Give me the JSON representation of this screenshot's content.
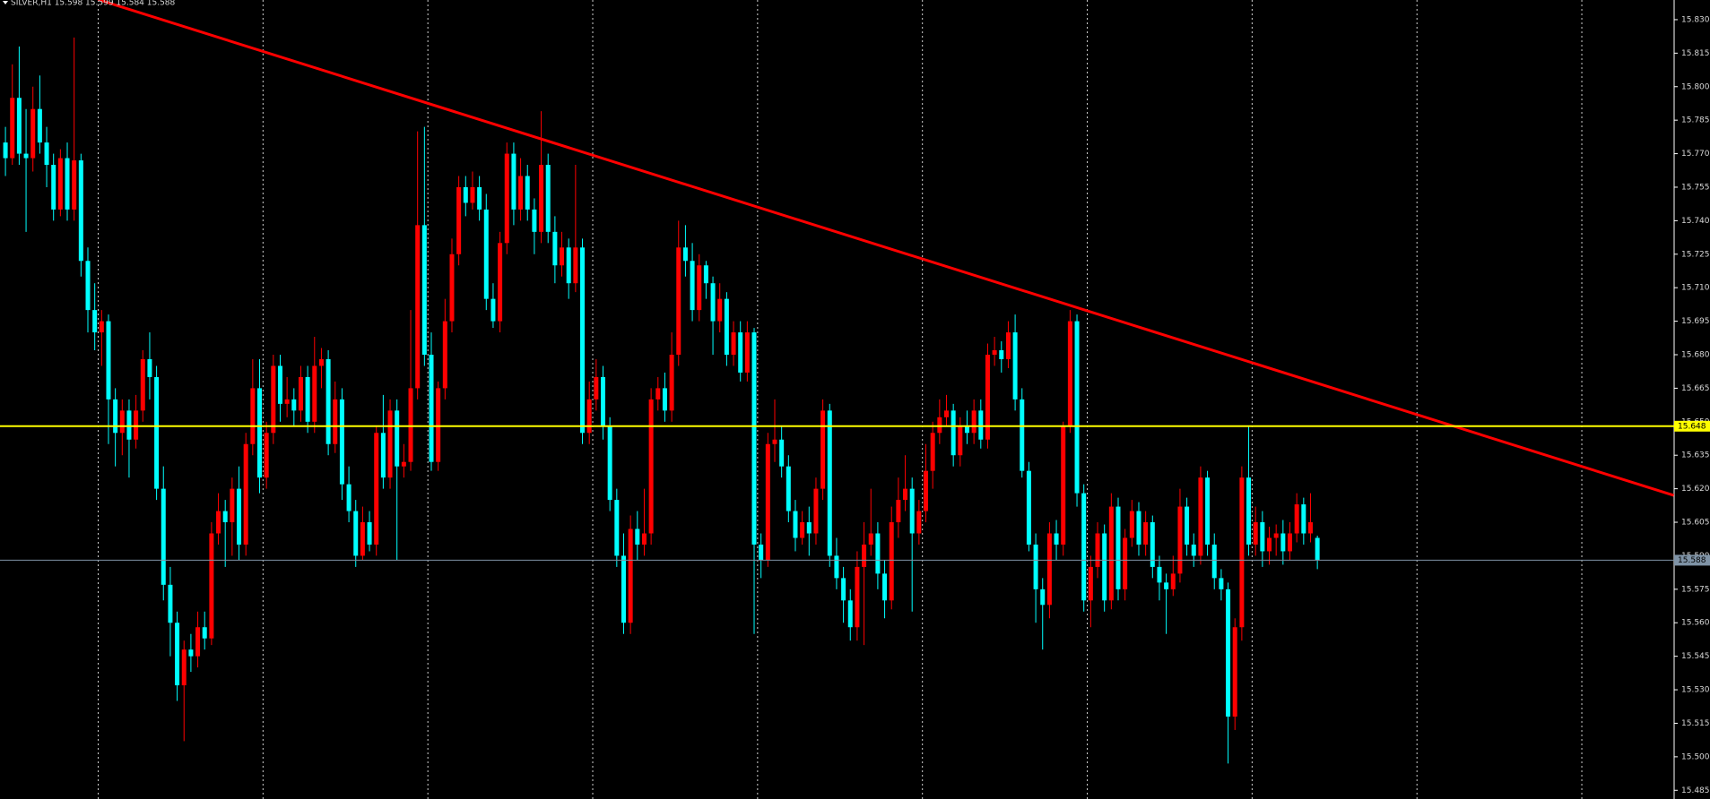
{
  "chart_data": {
    "type": "candlestick",
    "title": "SILVER,H1  15.598 15.599 15.584 15.588",
    "background": "#000000",
    "up_color": "#ff0000",
    "down_color": "#00ffff",
    "period_separators": true,
    "ylim": [
      15.4811,
      15.8388
    ],
    "yticks": [
      {
        "value": 15.83,
        "label": "15.830"
      },
      15.815,
      {
        "value": 15.8,
        "label": "15.800"
      },
      15.785,
      {
        "value": 15.77,
        "label": "15.770"
      },
      15.755,
      {
        "value": 15.74,
        "label": "15.740"
      },
      15.725,
      {
        "value": 15.71,
        "label": "15.710"
      },
      15.695,
      {
        "value": 15.68,
        "label": "15.680"
      },
      15.665,
      {
        "value": 15.65,
        "label": "15.650"
      },
      15.635,
      {
        "value": 15.62,
        "label": "15.620"
      },
      15.605,
      {
        "value": 15.59,
        "label": "15.590"
      },
      15.575,
      {
        "value": 15.56,
        "label": "15.560"
      },
      15.545,
      {
        "value": 15.53,
        "label": "15.530"
      },
      15.515,
      {
        "value": 15.5,
        "label": "15.500"
      },
      15.485
    ],
    "levels": [
      {
        "value": 15.648,
        "color": "#ffff00"
      },
      {
        "value": 15.588,
        "color": "#7f93a6"
      }
    ],
    "trendline": {
      "color": "#ff0000",
      "x": [
        13.5,
        242.9
      ],
      "y": [
        15.839,
        15.617
      ]
    },
    "ohlc": [
      [
        15.775,
        15.782,
        15.76,
        15.768
      ],
      [
        15.768,
        15.81,
        15.765,
        15.795
      ],
      [
        15.795,
        15.818,
        15.765,
        15.77
      ],
      [
        15.77,
        15.79,
        15.735,
        15.768
      ],
      [
        15.768,
        15.8,
        15.762,
        15.79
      ],
      [
        15.79,
        15.805,
        15.77,
        15.775
      ],
      [
        15.775,
        15.782,
        15.755,
        15.765
      ],
      [
        15.765,
        15.77,
        15.74,
        15.745
      ],
      [
        15.745,
        15.772,
        15.742,
        15.768
      ],
      [
        15.768,
        15.775,
        15.74,
        15.745
      ],
      [
        15.745,
        15.822,
        15.74,
        15.767
      ],
      [
        15.767,
        15.77,
        15.715,
        15.722
      ],
      [
        15.722,
        15.728,
        15.69,
        15.7
      ],
      [
        15.7,
        15.712,
        15.682,
        15.69
      ],
      [
        15.69,
        15.7,
        15.675,
        15.695
      ],
      [
        15.695,
        15.698,
        15.64,
        15.66
      ],
      [
        15.66,
        15.665,
        15.63,
        15.645
      ],
      [
        15.645,
        15.66,
        15.635,
        15.655
      ],
      [
        15.655,
        15.66,
        15.625,
        15.642
      ],
      [
        15.642,
        15.662,
        15.638,
        15.655
      ],
      [
        15.655,
        15.682,
        15.65,
        15.678
      ],
      [
        15.678,
        15.69,
        15.66,
        15.67
      ],
      [
        15.67,
        15.675,
        15.615,
        15.62
      ],
      [
        15.62,
        15.63,
        15.57,
        15.577
      ],
      [
        15.577,
        15.585,
        15.545,
        15.56
      ],
      [
        15.56,
        15.565,
        15.525,
        15.532
      ],
      [
        15.532,
        15.552,
        15.507,
        15.548
      ],
      [
        15.548,
        15.555,
        15.538,
        15.545
      ],
      [
        15.545,
        15.565,
        15.54,
        15.558
      ],
      [
        15.558,
        15.565,
        15.548,
        15.553
      ],
      [
        15.553,
        15.605,
        15.55,
        15.6
      ],
      [
        15.6,
        15.618,
        15.595,
        15.61
      ],
      [
        15.61,
        15.615,
        15.585,
        15.605
      ],
      [
        15.605,
        15.625,
        15.59,
        15.62
      ],
      [
        15.62,
        15.63,
        15.588,
        15.595
      ],
      [
        15.595,
        15.645,
        15.59,
        15.64
      ],
      [
        15.64,
        15.678,
        15.635,
        15.665
      ],
      [
        15.665,
        15.678,
        15.618,
        15.625
      ],
      [
        15.625,
        15.65,
        15.62,
        15.645
      ],
      [
        15.645,
        15.68,
        15.64,
        15.675
      ],
      [
        15.675,
        15.68,
        15.65,
        15.658
      ],
      [
        15.658,
        15.67,
        15.652,
        15.66
      ],
      [
        15.66,
        15.665,
        15.648,
        15.655
      ],
      [
        15.655,
        15.675,
        15.65,
        15.67
      ],
      [
        15.67,
        15.675,
        15.645,
        15.65
      ],
      [
        15.65,
        15.688,
        15.645,
        15.675
      ],
      [
        15.675,
        15.683,
        15.665,
        15.678
      ],
      [
        15.678,
        15.682,
        15.635,
        15.64
      ],
      [
        15.64,
        15.668,
        15.636,
        15.66
      ],
      [
        15.66,
        15.665,
        15.615,
        15.622
      ],
      [
        15.622,
        15.63,
        15.605,
        15.61
      ],
      [
        15.61,
        15.615,
        15.585,
        15.59
      ],
      [
        15.59,
        15.612,
        15.588,
        15.605
      ],
      [
        15.605,
        15.61,
        15.592,
        15.595
      ],
      [
        15.595,
        15.648,
        15.59,
        15.645
      ],
      [
        15.645,
        15.662,
        15.62,
        15.625
      ],
      [
        15.625,
        15.66,
        15.62,
        15.655
      ],
      [
        15.655,
        15.66,
        15.588,
        15.63
      ],
      [
        15.63,
        15.64,
        15.625,
        15.632
      ],
      [
        15.632,
        15.7,
        15.628,
        15.665
      ],
      [
        15.665,
        15.78,
        15.66,
        15.738
      ],
      [
        15.738,
        15.782,
        15.675,
        15.68
      ],
      [
        15.68,
        15.69,
        15.628,
        15.632
      ],
      [
        15.632,
        15.668,
        15.628,
        15.665
      ],
      [
        15.665,
        15.705,
        15.66,
        15.695
      ],
      [
        15.695,
        15.732,
        15.69,
        15.725
      ],
      [
        15.725,
        15.76,
        15.72,
        15.755
      ],
      [
        15.755,
        15.76,
        15.742,
        15.748
      ],
      [
        15.748,
        15.762,
        15.745,
        15.755
      ],
      [
        15.755,
        15.76,
        15.74,
        15.745
      ],
      [
        15.745,
        15.752,
        15.7,
        15.705
      ],
      [
        15.705,
        15.712,
        15.692,
        15.695
      ],
      [
        15.695,
        15.735,
        15.69,
        15.73
      ],
      [
        15.73,
        15.775,
        15.725,
        15.77
      ],
      [
        15.77,
        15.775,
        15.738,
        15.745
      ],
      [
        15.745,
        15.768,
        15.74,
        15.76
      ],
      [
        15.76,
        15.765,
        15.74,
        15.745
      ],
      [
        15.745,
        15.75,
        15.725,
        15.735
      ],
      [
        15.735,
        15.789,
        15.73,
        15.765
      ],
      [
        15.765,
        15.77,
        15.73,
        15.735
      ],
      [
        15.735,
        15.742,
        15.712,
        15.72
      ],
      [
        15.72,
        15.735,
        15.715,
        15.728
      ],
      [
        15.728,
        15.732,
        15.705,
        15.712
      ],
      [
        15.712,
        15.765,
        15.708,
        15.728
      ],
      [
        15.728,
        15.732,
        15.64,
        15.645
      ],
      [
        15.645,
        15.668,
        15.64,
        15.66
      ],
      [
        15.66,
        15.678,
        15.655,
        15.67
      ],
      [
        15.67,
        15.675,
        15.642,
        15.648
      ],
      [
        15.648,
        15.652,
        15.61,
        15.615
      ],
      [
        15.615,
        15.62,
        15.585,
        15.59
      ],
      [
        15.59,
        15.6,
        15.555,
        15.56
      ],
      [
        15.56,
        15.608,
        15.555,
        15.602
      ],
      [
        15.602,
        15.61,
        15.588,
        15.595
      ],
      [
        15.595,
        15.62,
        15.59,
        15.6
      ],
      [
        15.6,
        15.665,
        15.595,
        15.66
      ],
      [
        15.66,
        15.67,
        15.655,
        15.665
      ],
      [
        15.665,
        15.672,
        15.65,
        15.655
      ],
      [
        15.655,
        15.69,
        15.65,
        15.68
      ],
      [
        15.68,
        15.74,
        15.675,
        15.728
      ],
      [
        15.728,
        15.738,
        15.715,
        15.722
      ],
      [
        15.722,
        15.73,
        15.695,
        15.7
      ],
      [
        15.7,
        15.725,
        15.695,
        15.72
      ],
      [
        15.72,
        15.722,
        15.705,
        15.712
      ],
      [
        15.712,
        15.715,
        15.68,
        15.695
      ],
      [
        15.695,
        15.712,
        15.69,
        15.705
      ],
      [
        15.705,
        15.708,
        15.675,
        15.68
      ],
      [
        15.68,
        15.695,
        15.675,
        15.69
      ],
      [
        15.69,
        15.695,
        15.668,
        15.672
      ],
      [
        15.672,
        15.695,
        15.668,
        15.69
      ],
      [
        15.69,
        15.692,
        15.555,
        15.595
      ],
      [
        15.595,
        15.6,
        15.58,
        15.588
      ],
      [
        15.588,
        15.645,
        15.585,
        15.64
      ],
      [
        15.64,
        15.66,
        15.632,
        15.642
      ],
      [
        15.642,
        15.648,
        15.625,
        15.63
      ],
      [
        15.63,
        15.635,
        15.605,
        15.61
      ],
      [
        15.61,
        15.615,
        15.592,
        15.598
      ],
      [
        15.598,
        15.61,
        15.595,
        15.605
      ],
      [
        15.605,
        15.612,
        15.59,
        15.6
      ],
      [
        15.6,
        15.625,
        15.595,
        15.62
      ],
      [
        15.62,
        15.66,
        15.615,
        15.655
      ],
      [
        15.655,
        15.658,
        15.585,
        15.59
      ],
      [
        15.59,
        15.598,
        15.575,
        15.58
      ],
      [
        15.58,
        15.585,
        15.56,
        15.57
      ],
      [
        15.57,
        15.575,
        15.552,
        15.558
      ],
      [
        15.558,
        15.592,
        15.552,
        15.585
      ],
      [
        15.585,
        15.605,
        15.55,
        15.595
      ],
      [
        15.595,
        15.62,
        15.59,
        15.6
      ],
      [
        15.6,
        15.605,
        15.575,
        15.582
      ],
      [
        15.582,
        15.588,
        15.562,
        15.57
      ],
      [
        15.57,
        15.612,
        15.566,
        15.605
      ],
      [
        15.605,
        15.625,
        15.598,
        15.615
      ],
      [
        15.615,
        15.635,
        15.61,
        15.62
      ],
      [
        15.62,
        15.625,
        15.565,
        15.6
      ],
      [
        15.6,
        15.615,
        15.595,
        15.61
      ],
      [
        15.61,
        15.64,
        15.605,
        15.628
      ],
      [
        15.628,
        15.65,
        15.62,
        15.645
      ],
      [
        15.645,
        15.66,
        15.64,
        15.652
      ],
      [
        15.652,
        15.662,
        15.648,
        15.655
      ],
      [
        15.655,
        15.658,
        15.63,
        15.635
      ],
      [
        15.635,
        15.652,
        15.63,
        15.648
      ],
      [
        15.648,
        15.655,
        15.64,
        15.645
      ],
      [
        15.645,
        15.66,
        15.64,
        15.655
      ],
      [
        15.655,
        15.66,
        15.638,
        15.642
      ],
      [
        15.642,
        15.685,
        15.638,
        15.68
      ],
      [
        15.68,
        15.688,
        15.675,
        15.682
      ],
      [
        15.682,
        15.686,
        15.672,
        15.678
      ],
      [
        15.678,
        15.695,
        15.674,
        15.69
      ],
      [
        15.69,
        15.698,
        15.655,
        15.66
      ],
      [
        15.66,
        15.665,
        15.625,
        15.628
      ],
      [
        15.628,
        15.632,
        15.592,
        15.595
      ],
      [
        15.595,
        15.6,
        15.56,
        15.575
      ],
      [
        15.575,
        15.58,
        15.548,
        15.568
      ],
      [
        15.568,
        15.605,
        15.562,
        15.6
      ],
      [
        15.6,
        15.606,
        15.588,
        15.595
      ],
      [
        15.595,
        15.65,
        15.59,
        15.648
      ],
      [
        15.648,
        15.7,
        15.645,
        15.695
      ],
      [
        15.695,
        15.698,
        15.612,
        15.618
      ],
      [
        15.618,
        15.622,
        15.565,
        15.57
      ],
      [
        15.57,
        15.59,
        15.558,
        15.585
      ],
      [
        15.585,
        15.605,
        15.58,
        15.6
      ],
      [
        15.6,
        15.604,
        15.565,
        15.57
      ],
      [
        15.57,
        15.618,
        15.566,
        15.612
      ],
      [
        15.612,
        15.616,
        15.57,
        15.575
      ],
      [
        15.575,
        15.602,
        15.57,
        15.598
      ],
      [
        15.598,
        15.615,
        15.594,
        15.61
      ],
      [
        15.61,
        15.614,
        15.59,
        15.595
      ],
      [
        15.595,
        15.61,
        15.59,
        15.605
      ],
      [
        15.605,
        15.608,
        15.58,
        15.585
      ],
      [
        15.585,
        15.59,
        15.57,
        15.578
      ],
      [
        15.578,
        15.582,
        15.555,
        15.575
      ],
      [
        15.575,
        15.59,
        15.572,
        15.582
      ],
      [
        15.582,
        15.62,
        15.578,
        15.612
      ],
      [
        15.612,
        15.616,
        15.59,
        15.595
      ],
      [
        15.595,
        15.6,
        15.585,
        15.59
      ],
      [
        15.59,
        15.63,
        15.586,
        15.625
      ],
      [
        15.625,
        15.628,
        15.59,
        15.595
      ],
      [
        15.595,
        15.6,
        15.575,
        15.58
      ],
      [
        15.58,
        15.584,
        15.57,
        15.575
      ],
      [
        15.575,
        15.578,
        15.497,
        15.518
      ],
      [
        15.518,
        15.562,
        15.512,
        15.558
      ],
      [
        15.558,
        15.63,
        15.552,
        15.625
      ],
      [
        15.625,
        15.648,
        15.59,
        15.595
      ],
      [
        15.595,
        15.612,
        15.59,
        15.605
      ],
      [
        15.605,
        15.61,
        15.585,
        15.592
      ],
      [
        15.592,
        15.603,
        15.586,
        15.598
      ],
      [
        15.598,
        15.604,
        15.59,
        15.6
      ],
      [
        15.6,
        15.606,
        15.586,
        15.592
      ],
      [
        15.592,
        15.605,
        15.588,
        15.6
      ],
      [
        15.6,
        15.618,
        15.596,
        15.613
      ],
      [
        15.613,
        15.616,
        15.595,
        15.6
      ],
      [
        15.6,
        15.618,
        15.596,
        15.605
      ],
      [
        15.598,
        15.599,
        15.584,
        15.588
      ]
    ]
  }
}
